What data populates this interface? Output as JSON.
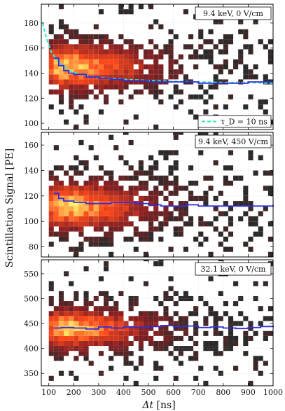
{
  "figure": {
    "ylabel": "Scintillation Signal [PE]",
    "xlabel_main": "Δt",
    "xlabel_unit": "[ns]"
  },
  "chart_data": [
    {
      "type": "heatmap",
      "panel": "top",
      "annotation": "9.4 keV, 0 V/cm",
      "xlim": [
        70,
        1000
      ],
      "ylim": [
        95,
        195
      ],
      "yticks": [
        100,
        120,
        140,
        160,
        180
      ],
      "bin_x": 20,
      "bin_y": 4,
      "x_center": 150,
      "y_center": 145,
      "sx": 60,
      "sy": 14,
      "median_line": {
        "color": "#2f2fd8",
        "x": [
          120,
          140,
          160,
          180,
          200,
          250,
          300,
          350,
          400,
          500,
          600,
          700,
          800,
          900,
          1000
        ],
        "y": [
          152,
          146,
          142,
          140,
          139,
          137,
          136,
          135,
          134,
          133,
          133,
          132,
          132,
          133,
          133
        ]
      },
      "fit_line": {
        "legend": "τ_D = 10 ns",
        "color": "#40e8c0",
        "x": [
          75,
          90,
          110,
          130,
          150,
          175,
          200,
          250,
          300,
          400,
          500,
          600,
          700,
          800,
          900,
          1000
        ],
        "y": [
          180,
          168,
          157,
          151,
          147,
          143,
          140.5,
          138,
          136.5,
          135,
          134,
          133.5,
          133,
          132.5,
          132.5,
          132
        ]
      }
    },
    {
      "type": "heatmap",
      "panel": "middle",
      "annotation": "9.4 keV, 450 V/cm",
      "xlim": [
        70,
        1000
      ],
      "ylim": [
        72,
        170
      ],
      "yticks": [
        80,
        100,
        120,
        140,
        160
      ],
      "bin_x": 20,
      "bin_y": 4,
      "x_center": 150,
      "y_center": 112,
      "sx": 60,
      "sy": 14,
      "median_line": {
        "color": "#2f2fd8",
        "x": [
          120,
          140,
          160,
          200,
          250,
          300,
          350,
          400,
          450,
          500,
          550,
          600,
          650,
          700,
          800,
          900,
          1000
        ],
        "y": [
          122,
          118,
          116,
          115,
          114,
          114,
          115,
          115,
          114,
          113,
          112,
          112,
          113,
          112,
          112,
          112,
          113
        ]
      }
    },
    {
      "type": "heatmap",
      "panel": "bottom",
      "annotation": "32.1 keV, 0 V/cm",
      "xlim": [
        70,
        1000
      ],
      "ylim": [
        325,
        578
      ],
      "yticks": [
        350,
        400,
        450,
        500,
        550
      ],
      "bin_x": 20,
      "bin_y": 10,
      "x_center": 150,
      "y_center": 440,
      "sx": 60,
      "sy": 30,
      "median_line": {
        "color": "#2f2fd8",
        "x": [
          120,
          150,
          200,
          250,
          300,
          350,
          400,
          450,
          500,
          550,
          600,
          650,
          700,
          750,
          800,
          850,
          900,
          950,
          1000
        ],
        "y": [
          441,
          442,
          441,
          439,
          443,
          441,
          443,
          442,
          444,
          446,
          444,
          445,
          442,
          443,
          441,
          440,
          442,
          444,
          446
        ]
      }
    }
  ],
  "xaxis": {
    "ticks": [
      100,
      200,
      300,
      400,
      500,
      600,
      700,
      800,
      900,
      1000
    ]
  },
  "colormap": {
    "low": "#2a2a2a",
    "mid": "#8a1f22",
    "high": "#ff4a1a",
    "peak": "#fff36a"
  }
}
